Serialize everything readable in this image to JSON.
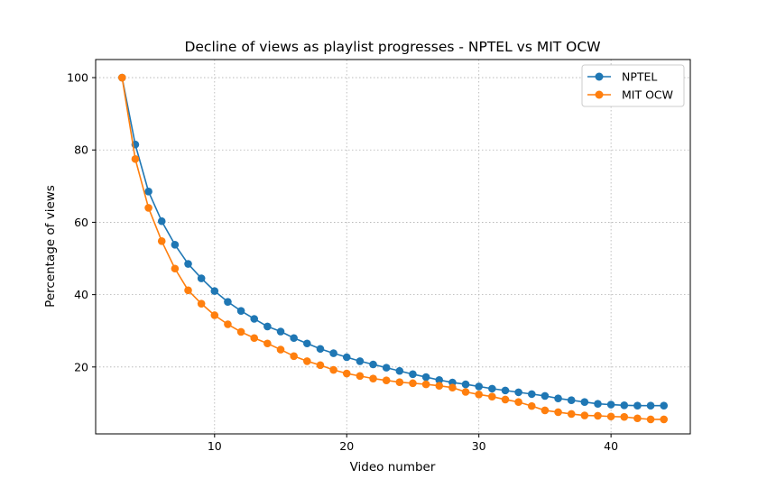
{
  "chart_data": {
    "type": "line",
    "title": "Decline of views as playlist progresses - NPTEL vs MIT OCW",
    "xlabel": "Video number",
    "ylabel": "Percentage of views",
    "xlim": [
      1,
      46
    ],
    "ylim": [
      1.5,
      105
    ],
    "xticks": [
      10,
      20,
      30,
      40
    ],
    "yticks": [
      20,
      40,
      60,
      80,
      100
    ],
    "grid": true,
    "legend_position": "top-right",
    "x": [
      3,
      4,
      5,
      6,
      7,
      8,
      9,
      10,
      11,
      12,
      13,
      14,
      15,
      16,
      17,
      18,
      19,
      20,
      21,
      22,
      23,
      24,
      25,
      26,
      27,
      28,
      29,
      30,
      31,
      32,
      33,
      34,
      35,
      36,
      37,
      38,
      39,
      40,
      41,
      42,
      43,
      44
    ],
    "series": [
      {
        "name": "NPTEL",
        "color": "#1f77b4",
        "values": [
          100,
          81.5,
          68.5,
          60.3,
          53.8,
          48.5,
          44.5,
          41.0,
          38.0,
          35.5,
          33.3,
          31.2,
          29.8,
          28.0,
          26.5,
          25.0,
          23.8,
          22.7,
          21.6,
          20.7,
          19.8,
          18.9,
          18.0,
          17.2,
          16.4,
          15.7,
          15.2,
          14.6,
          14.0,
          13.5,
          13.0,
          12.5,
          12.0,
          11.3,
          10.8,
          10.3,
          9.8,
          9.6,
          9.4,
          9.3,
          9.3,
          9.3
        ]
      },
      {
        "name": "MIT OCW",
        "color": "#ff7f0e",
        "values": [
          100,
          77.5,
          64.0,
          54.8,
          47.2,
          41.2,
          37.5,
          34.3,
          31.8,
          29.7,
          28.0,
          26.5,
          24.8,
          23.0,
          21.6,
          20.5,
          19.2,
          18.2,
          17.5,
          16.8,
          16.3,
          15.8,
          15.5,
          15.2,
          14.8,
          14.3,
          13.1,
          12.4,
          11.8,
          11.0,
          10.3,
          9.2,
          8.0,
          7.5,
          7.0,
          6.6,
          6.5,
          6.3,
          6.2,
          5.8,
          5.5,
          5.5
        ]
      }
    ]
  }
}
